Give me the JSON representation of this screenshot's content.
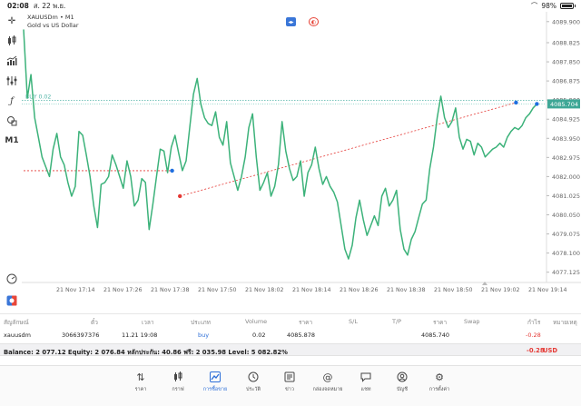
{
  "status_bar": {
    "time": "02:08",
    "date": "ส. 22 พ.ย.",
    "battery": "98%"
  },
  "chart_header": {
    "line1": "XAUUSDm • M1",
    "line2": "Gold vs US Dollar"
  },
  "toolbar_icons": [
    "crosshair-icon",
    "candlestick-icon",
    "indicators-icon",
    "objects-icon",
    "function-icon",
    "shapes-icon"
  ],
  "timeframe": "M1",
  "order_line_label": "BUY 0.02",
  "current_price": "4085.704",
  "chart_data": {
    "type": "line",
    "series": [
      {
        "values": [
          4089.5,
          4086.0,
          4087.2,
          4085.0,
          4084.0,
          4083.0,
          4082.5,
          4082.0,
          4083.4,
          4084.2,
          4083.0,
          4082.6,
          4081.7,
          4081.0,
          4081.5,
          4084.3,
          4084.1,
          4083.1,
          4082.0,
          4080.5,
          4079.4,
          4081.6,
          4081.7,
          4082.0,
          4083.1,
          4082.6,
          4082.0,
          4081.4,
          4082.8,
          4082.0,
          4080.5,
          4080.8,
          4081.9,
          4081.7,
          4079.3,
          4080.6,
          4082.0,
          4083.4,
          4083.3,
          4082.2,
          4083.5,
          4084.1,
          4083.2,
          4082.3,
          4082.8,
          4084.5,
          4086.2,
          4087.0,
          4085.7,
          4085.0,
          4084.7,
          4084.6,
          4085.3,
          4084.0,
          4083.6,
          4084.8,
          4082.7,
          4082.0,
          4081.3,
          4082.0,
          4083.0,
          4084.5,
          4085.2,
          4083.0,
          4081.3,
          4081.7,
          4082.2,
          4081.0,
          4081.5,
          4082.6,
          4084.8,
          4083.3,
          4082.4,
          4081.8,
          4082.0,
          4082.8,
          4081.0,
          4082.2,
          4082.6,
          4083.5,
          4082.4,
          4081.6,
          4082.0,
          4081.5,
          4081.2,
          4080.7,
          4079.5,
          4078.3,
          4077.8,
          4078.5,
          4079.9,
          4080.8,
          4079.8,
          4079.0,
          4079.5,
          4080.0,
          4079.5,
          4081.0,
          4081.4,
          4080.5,
          4080.8,
          4081.3,
          4079.3,
          4078.3,
          4078.0,
          4078.8,
          4079.2,
          4079.9,
          4080.6,
          4080.8,
          4082.4,
          4083.5,
          4085.0,
          4086.1,
          4085.0,
          4084.5,
          4084.8,
          4085.5,
          4084.0,
          4083.4,
          4083.9,
          4083.8,
          4083.1,
          4083.7,
          4083.5,
          4083.0,
          4083.2,
          4083.4,
          4083.5,
          4083.7,
          4083.5,
          4084.0,
          4084.3,
          4084.5,
          4084.4,
          4084.6,
          4085.0,
          4085.2,
          4085.5,
          4085.7
        ]
      }
    ],
    "x_tick_labels": [
      "21 Nov 17:14",
      "21 Nov 17:26",
      "21 Nov 17:38",
      "21 Nov 17:50",
      "21 Nov 18:02",
      "21 Nov 18:14",
      "21 Nov 18:26",
      "21 Nov 18:38",
      "21 Nov 18:50",
      "21 Nov 19:02",
      "21 Nov 19:14"
    ],
    "y_tick_labels": [
      "4089.900",
      "4088.825",
      "4087.850",
      "4086.875",
      "4085.900",
      "4084.925",
      "4083.950",
      "4082.975",
      "4082.000",
      "4081.025",
      "4080.050",
      "4079.075",
      "4078.100",
      "4077.125"
    ],
    "ylim": [
      4076.6,
      4090.4
    ],
    "order_price": 4085.878,
    "trades": [
      {
        "from_x": 0,
        "from_y": 4082.3,
        "to_x": 0.285,
        "to_y": 4082.3,
        "color": "#e53935"
      },
      {
        "from_x": 0.3,
        "from_y": 4081.0,
        "to_x": 0.945,
        "to_y": 4085.77,
        "color": "#e53935"
      }
    ],
    "markers": [
      {
        "x": 0.285,
        "y": 4082.3,
        "color": "#1e6fe0"
      },
      {
        "x": 0.3,
        "y": 4081.0,
        "color": "#e53935"
      },
      {
        "x": 0.945,
        "y": 4085.77,
        "color": "#1e6fe0"
      },
      {
        "x": 0.985,
        "y": 4085.704,
        "color": "#1e6fe0"
      }
    ],
    "line_color": "#3cb27a"
  },
  "positions_table": {
    "headers": [
      "สัญลักษณ์",
      "ตั๋ว",
      "เวลา",
      "ประเภท",
      "Volume",
      "ราคา",
      "S/L",
      "T/P",
      "ราคา",
      "Swap",
      "กำไร",
      "หมายเหตุ"
    ],
    "row": [
      "xauusdm",
      "3066397376",
      "11.21 19:08",
      "buy",
      "0.02",
      "4085.878",
      "",
      "",
      "4085.740",
      "",
      "-0.28",
      ""
    ]
  },
  "balance_text": "Balance: 2 077.12 Equity: 2 076.84 หลักประกัน: 40.86 ฟรี: 2 035.98 Level: 5 082.82%",
  "total_profit": "-0.28",
  "currency": "USD",
  "tabs": [
    {
      "label": "ราคา",
      "icon": "quotes-icon",
      "active": false
    },
    {
      "label": "กราฟ",
      "icon": "chart-icon",
      "active": false
    },
    {
      "label": "การซื้อขาย",
      "icon": "trade-icon",
      "active": true
    },
    {
      "label": "ประวัติ",
      "icon": "history-icon",
      "active": false
    },
    {
      "label": "ข่าว",
      "icon": "news-icon",
      "active": false
    },
    {
      "label": "กล่องจดหมาย",
      "icon": "mailbox-icon",
      "active": false
    },
    {
      "label": "แชท",
      "icon": "chat-icon",
      "active": false
    },
    {
      "label": "บัญชี",
      "icon": "account-icon",
      "active": false
    },
    {
      "label": "การตั้งค่า",
      "icon": "settings-icon",
      "active": false
    }
  ]
}
